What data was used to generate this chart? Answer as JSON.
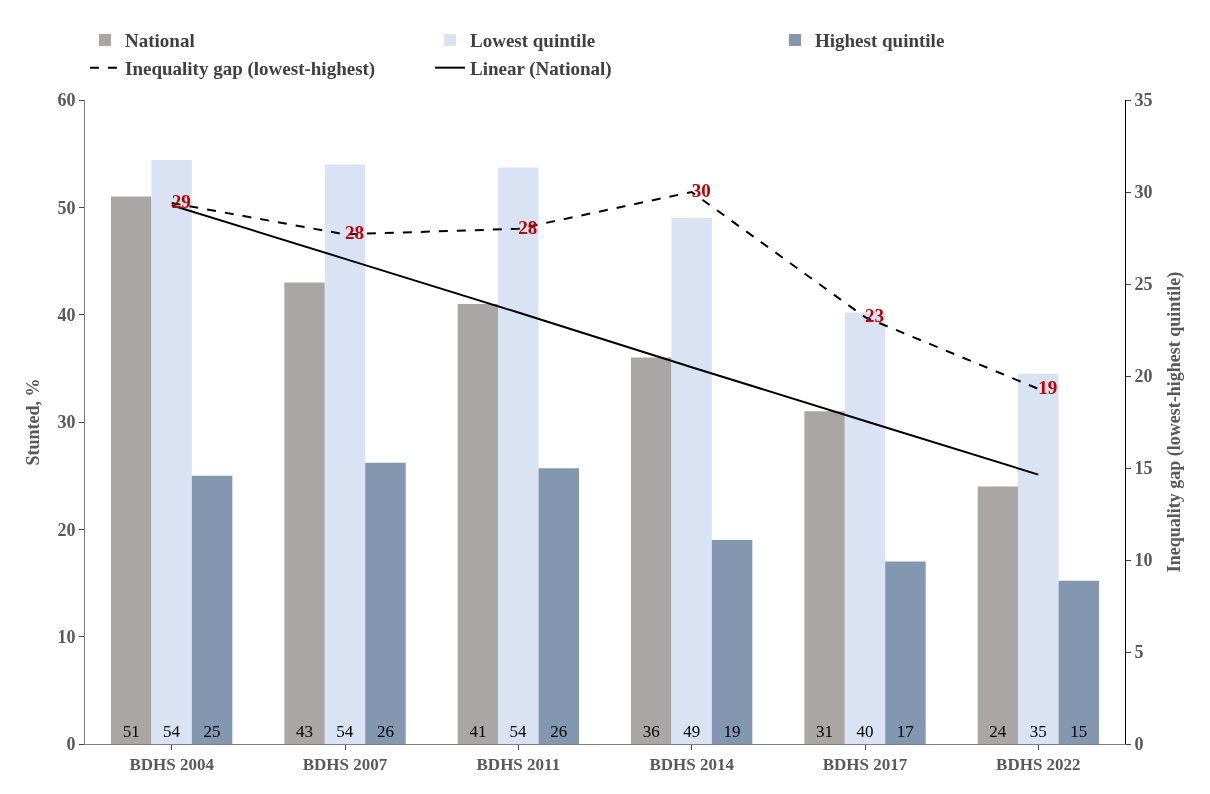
{
  "chart_data": {
    "type": "bar",
    "ylabel": "Stunted, %",
    "y2label": "Inequality gap (lowest-highest quintile)",
    "categories": [
      "BDHS 2004",
      "BDHS 2007",
      "BDHS 2011",
      "BDHS 2014",
      "BDHS 2017",
      "BDHS 2022"
    ],
    "series": [
      {
        "name": "National",
        "color": "#aba6a6",
        "values": [
          51,
          43,
          41,
          36,
          31,
          24
        ],
        "value_labels": [
          "51",
          "43",
          "41",
          "36",
          "31",
          "24"
        ]
      },
      {
        "name": "Lowest quintile",
        "color": "#dae3f3",
        "values": [
          54.4,
          54,
          53.7,
          49,
          40.2,
          34.5
        ],
        "value_labels": [
          "54",
          "54",
          "54",
          "49",
          "40",
          "35"
        ]
      },
      {
        "name": "Highest quintile",
        "color": "#8497b0",
        "values": [
          25,
          26.2,
          25.7,
          19,
          17,
          15.2
        ],
        "value_labels": [
          "25",
          "26",
          "26",
          "19",
          "17",
          "15"
        ]
      },
      {
        "name": "Inequality gap (lowest-highest)",
        "type": "line",
        "axis": "y2",
        "color": "#000000",
        "line_style": "dashed",
        "values": [
          29.4,
          27.7,
          28,
          30,
          23.2,
          19.3
        ],
        "value_labels": [
          "29",
          "28",
          "28",
          "30",
          "23",
          "19"
        ]
      },
      {
        "name": "Linear (National)",
        "type": "line",
        "color": "#000000",
        "line_style": "solid",
        "values": [
          50.2,
          45.2,
          40.2,
          35.1,
          30.1,
          25.1
        ]
      }
    ],
    "ylim": [
      0,
      60
    ],
    "yticks": [
      0,
      10,
      20,
      30,
      40,
      50,
      60
    ],
    "y2lim": [
      0,
      35
    ],
    "y2ticks": [
      0,
      5,
      10,
      15,
      20,
      25,
      30,
      35
    ],
    "grid": false,
    "legend": "top",
    "marker": "none"
  }
}
